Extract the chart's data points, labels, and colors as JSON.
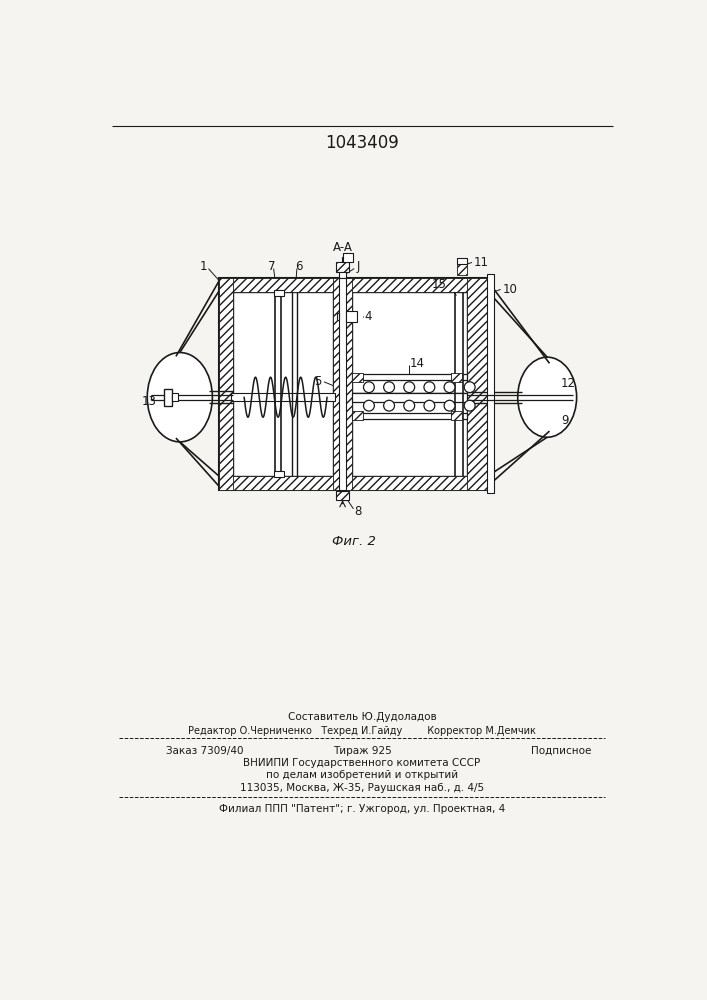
{
  "title": "1043409",
  "fig_label": "Фиг. 2",
  "aa_label": "A-A",
  "bg_color": "#f5f4f0",
  "line_color": "#1a1a1a",
  "footer_lines": [
    "Составитель Ю.Дудоладов",
    "Редактор О.Черниченко   Техред И.Гайду        Корректор М.Демчик",
    "Заказ 7309/40         Тираж 925              Подписное",
    "ВНИИПИ Государственного комитета СССР",
    "по делам изобретений и открытий",
    "113035, Москва, Ж-35, Раушская наб., д. 4/5",
    "Филиал ППП \"Патент\"; г. Ужгород, ул. Проектная, 4"
  ]
}
